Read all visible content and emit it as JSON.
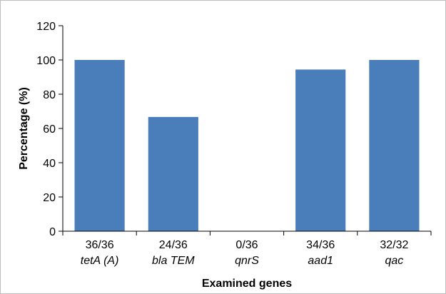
{
  "chart_data": {
    "type": "bar",
    "title": "",
    "xlabel": "Examined genes",
    "ylabel": "Percentage (%)",
    "ylim": [
      0,
      120
    ],
    "yticks": [
      0,
      20,
      40,
      60,
      80,
      100,
      120
    ],
    "grid": false,
    "legend": "none",
    "bar_color": "#4a7ebb",
    "categories": [
      {
        "ratio": "36/36",
        "gene": "tetA (A)"
      },
      {
        "ratio": "24/36",
        "gene": "bla TEM"
      },
      {
        "ratio": "0/36",
        "gene": "qnrS"
      },
      {
        "ratio": "34/36",
        "gene": "aad1"
      },
      {
        "ratio": "32/32",
        "gene": "qac"
      }
    ],
    "values": [
      100,
      66.7,
      0,
      94.4,
      100
    ]
  }
}
